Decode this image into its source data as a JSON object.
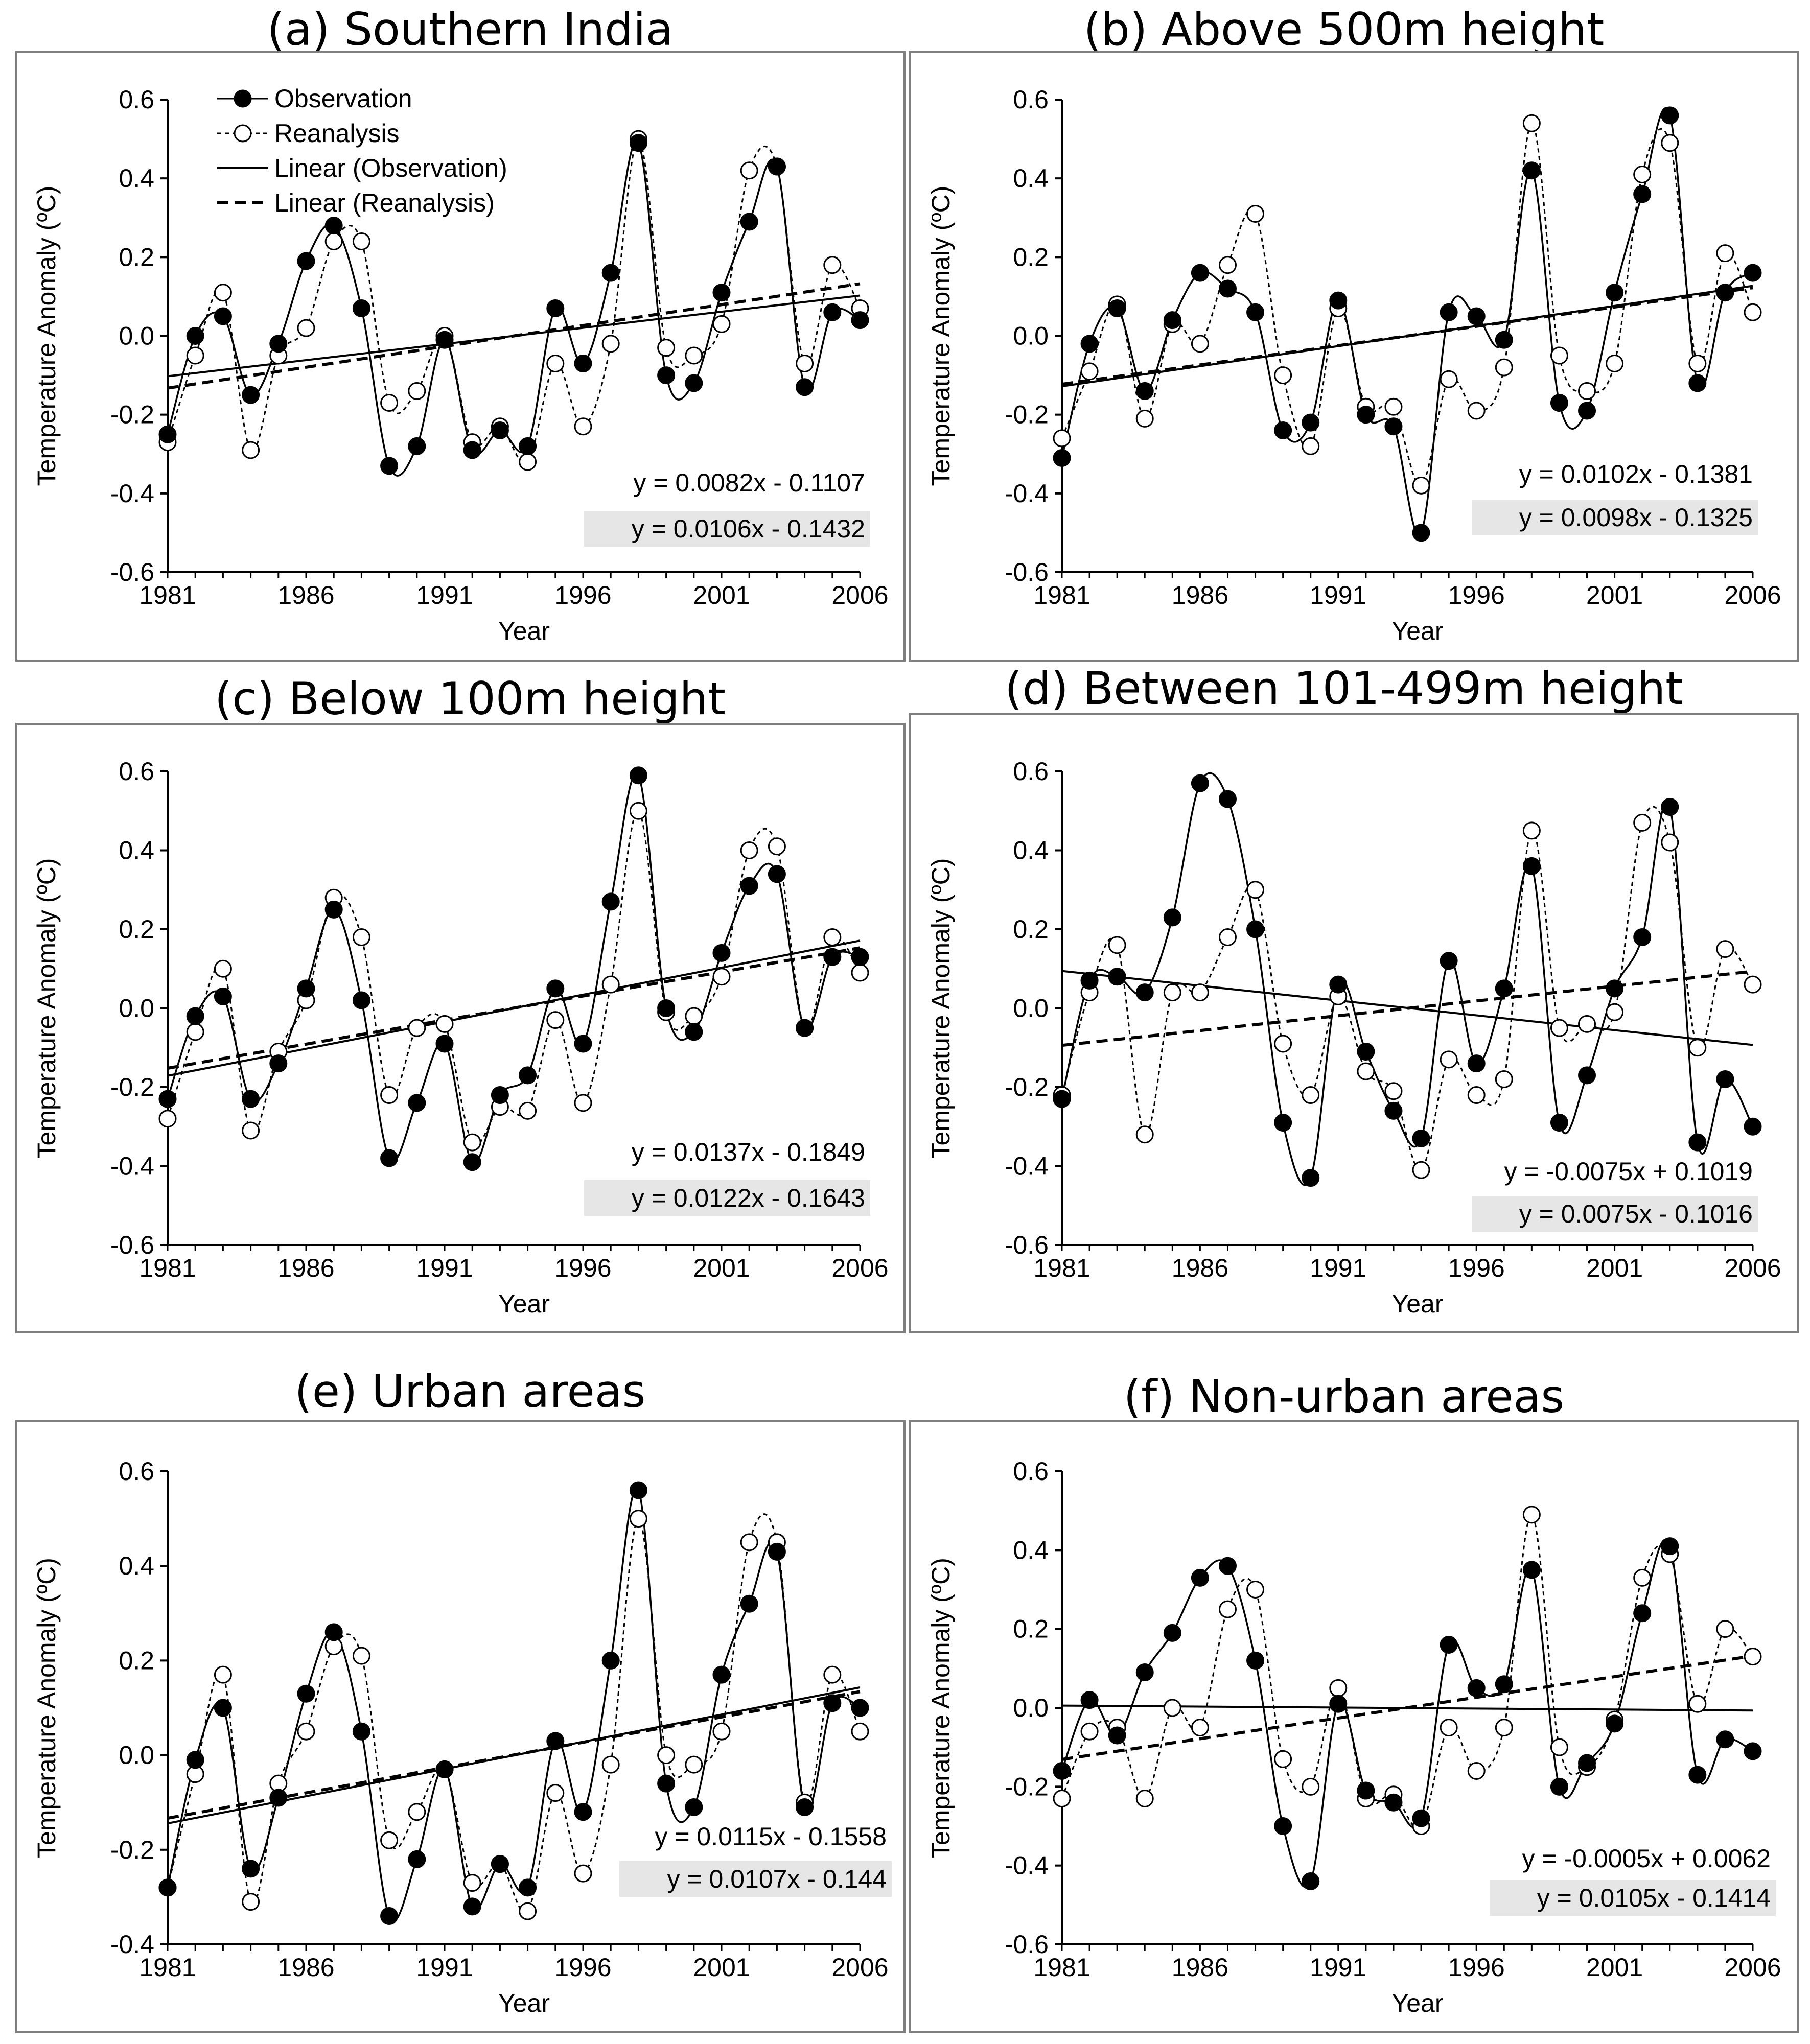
{
  "figure": {
    "ylabel": "Temperature Anomaly (ºC)",
    "xlabel": "Year",
    "x_ticks": [
      1981,
      1986,
      1991,
      1996,
      2001,
      2006
    ],
    "legend": [
      "Observation",
      "Reanalysis",
      "Linear (Observation)",
      "Linear (Reanalysis)"
    ]
  },
  "chart_data": [
    {
      "type": "line",
      "title": "(a) Southern India",
      "xlabel": "Year",
      "ylabel": "Temperature Anomaly (ºC)",
      "ylim": [
        -0.6,
        0.6
      ],
      "ytick_step": 0.2,
      "xlim": [
        1981,
        2006
      ],
      "x": [
        1981,
        1982,
        1983,
        1984,
        1985,
        1986,
        1987,
        1988,
        1989,
        1990,
        1991,
        1992,
        1993,
        1994,
        1995,
        1996,
        1997,
        1998,
        1999,
        2000,
        2001,
        2002,
        2003,
        2004,
        2005,
        2006
      ],
      "series": [
        {
          "name": "Observation",
          "values": [
            -0.25,
            0.0,
            0.05,
            -0.15,
            -0.02,
            0.19,
            0.28,
            0.07,
            -0.33,
            -0.28,
            -0.01,
            -0.29,
            -0.24,
            -0.28,
            0.07,
            -0.07,
            0.16,
            0.49,
            -0.1,
            -0.12,
            0.11,
            0.29,
            0.43,
            -0.13,
            0.06,
            0.04
          ]
        },
        {
          "name": "Reanalysis",
          "values": [
            -0.27,
            -0.05,
            0.11,
            -0.29,
            -0.05,
            0.02,
            0.24,
            0.24,
            -0.17,
            -0.14,
            0.0,
            -0.27,
            -0.23,
            -0.32,
            -0.07,
            -0.23,
            -0.02,
            0.5,
            -0.03,
            -0.05,
            0.03,
            0.42,
            0.43,
            -0.07,
            0.18,
            0.07
          ]
        }
      ],
      "trend_lines": [
        {
          "name": "Linear (Observation)",
          "slope": 0.0082,
          "intercept": -0.1107
        },
        {
          "name": "Linear (Reanalysis)",
          "slope": 0.0106,
          "intercept": -0.1432
        }
      ],
      "equations": [
        "y = 0.0082x - 0.1107",
        "y = 0.0106x - 0.1432"
      ],
      "legend": [
        "Observation",
        "Reanalysis",
        "Linear (Observation)",
        "Linear (Reanalysis)"
      ]
    },
    {
      "type": "line",
      "title": "(b) Above 500m height",
      "xlabel": "Year",
      "ylabel": "Temperature Anomaly (ºC)",
      "ylim": [
        -0.6,
        0.6
      ],
      "ytick_step": 0.2,
      "xlim": [
        1981,
        2006
      ],
      "x": [
        1981,
        1982,
        1983,
        1984,
        1985,
        1986,
        1987,
        1988,
        1989,
        1990,
        1991,
        1992,
        1993,
        1994,
        1995,
        1996,
        1997,
        1998,
        1999,
        2000,
        2001,
        2002,
        2003,
        2004,
        2005,
        2006
      ],
      "series": [
        {
          "name": "Observation",
          "values": [
            -0.31,
            -0.02,
            0.07,
            -0.14,
            0.04,
            0.16,
            0.12,
            0.06,
            -0.24,
            -0.22,
            0.09,
            -0.2,
            -0.23,
            -0.5,
            0.06,
            0.05,
            -0.01,
            0.42,
            -0.17,
            -0.19,
            0.11,
            0.36,
            0.56,
            -0.12,
            0.11,
            0.16
          ]
        },
        {
          "name": "Reanalysis",
          "values": [
            -0.26,
            -0.09,
            0.08,
            -0.21,
            0.03,
            -0.02,
            0.18,
            0.31,
            -0.1,
            -0.28,
            0.07,
            -0.18,
            -0.18,
            -0.38,
            -0.11,
            -0.19,
            -0.08,
            0.54,
            -0.05,
            -0.14,
            -0.07,
            0.41,
            0.49,
            -0.07,
            0.21,
            0.06
          ]
        }
      ],
      "trend_lines": [
        {
          "name": "Linear (Observation)",
          "slope": 0.0102,
          "intercept": -0.1381
        },
        {
          "name": "Linear (Reanalysis)",
          "slope": 0.0098,
          "intercept": -0.1325
        }
      ],
      "equations": [
        "y = 0.0102x - 0.1381",
        "y = 0.0098x - 0.1325"
      ]
    },
    {
      "type": "line",
      "title": "(c) Below 100m height",
      "xlabel": "Year",
      "ylabel": "Temperature Anomaly (ºC)",
      "ylim": [
        -0.6,
        0.6
      ],
      "ytick_step": 0.2,
      "xlim": [
        1981,
        2006
      ],
      "x": [
        1981,
        1982,
        1983,
        1984,
        1985,
        1986,
        1987,
        1988,
        1989,
        1990,
        1991,
        1992,
        1993,
        1994,
        1995,
        1996,
        1997,
        1998,
        1999,
        2000,
        2001,
        2002,
        2003,
        2004,
        2005,
        2006
      ],
      "series": [
        {
          "name": "Observation",
          "values": [
            -0.23,
            -0.02,
            0.03,
            -0.23,
            -0.14,
            0.05,
            0.25,
            0.02,
            -0.38,
            -0.24,
            -0.09,
            -0.39,
            -0.22,
            -0.17,
            0.05,
            -0.09,
            0.27,
            0.59,
            0.0,
            -0.06,
            0.14,
            0.31,
            0.34,
            -0.05,
            0.13,
            0.13
          ]
        },
        {
          "name": "Reanalysis",
          "values": [
            -0.28,
            -0.06,
            0.1,
            -0.31,
            -0.11,
            0.02,
            0.28,
            0.18,
            -0.22,
            -0.05,
            -0.04,
            -0.34,
            -0.25,
            -0.26,
            -0.03,
            -0.24,
            0.06,
            0.5,
            -0.01,
            -0.02,
            0.08,
            0.4,
            0.41,
            -0.05,
            0.18,
            0.09
          ]
        }
      ],
      "trend_lines": [
        {
          "name": "Linear (Observation)",
          "slope": 0.0137,
          "intercept": -0.1849
        },
        {
          "name": "Linear (Reanalysis)",
          "slope": 0.0122,
          "intercept": -0.1643
        }
      ],
      "equations": [
        "y = 0.0137x - 0.1849",
        "y = 0.0122x - 0.1643"
      ]
    },
    {
      "type": "line",
      "title": "(d) Between 101-499m height",
      "xlabel": "Year",
      "ylabel": "Temperature Anomaly (ºC)",
      "ylim": [
        -0.6,
        0.6
      ],
      "ytick_step": 0.2,
      "xlim": [
        1981,
        2006
      ],
      "x": [
        1981,
        1982,
        1983,
        1984,
        1985,
        1986,
        1987,
        1988,
        1989,
        1990,
        1991,
        1992,
        1993,
        1994,
        1995,
        1996,
        1997,
        1998,
        1999,
        2000,
        2001,
        2002,
        2003,
        2004,
        2005,
        2006
      ],
      "series": [
        {
          "name": "Observation",
          "values": [
            -0.23,
            0.07,
            0.08,
            0.04,
            0.23,
            0.57,
            0.53,
            0.2,
            -0.29,
            -0.43,
            0.06,
            -0.11,
            -0.26,
            -0.33,
            0.12,
            -0.14,
            0.05,
            0.36,
            -0.29,
            -0.17,
            0.05,
            0.18,
            0.51,
            -0.34,
            -0.18,
            -0.3
          ]
        },
        {
          "name": "Reanalysis",
          "values": [
            -0.22,
            0.04,
            0.16,
            -0.32,
            0.04,
            0.04,
            0.18,
            0.3,
            -0.09,
            -0.22,
            0.03,
            -0.16,
            -0.21,
            -0.41,
            -0.13,
            -0.22,
            -0.18,
            0.45,
            -0.05,
            -0.04,
            -0.01,
            0.47,
            0.42,
            -0.1,
            0.15,
            0.06
          ]
        }
      ],
      "trend_lines": [
        {
          "name": "Linear (Observation)",
          "slope": -0.0075,
          "intercept": 0.1019
        },
        {
          "name": "Linear (Reanalysis)",
          "slope": 0.0075,
          "intercept": -0.1016
        }
      ],
      "equations": [
        "y = -0.0075x + 0.1019",
        "y = 0.0075x - 0.1016"
      ]
    },
    {
      "type": "line",
      "title": "(e) Urban areas",
      "xlabel": "Year",
      "ylabel": "Temperature Anomaly (ºC)",
      "ylim": [
        -0.4,
        0.6
      ],
      "ytick_step": 0.2,
      "xlim": [
        1981,
        2006
      ],
      "x": [
        1981,
        1982,
        1983,
        1984,
        1985,
        1986,
        1987,
        1988,
        1989,
        1990,
        1991,
        1992,
        1993,
        1994,
        1995,
        1996,
        1997,
        1998,
        1999,
        2000,
        2001,
        2002,
        2003,
        2004,
        2005,
        2006
      ],
      "series": [
        {
          "name": "Observation",
          "values": [
            -0.28,
            -0.01,
            0.1,
            -0.24,
            -0.09,
            0.13,
            0.26,
            0.05,
            -0.34,
            -0.22,
            -0.03,
            -0.32,
            -0.23,
            -0.28,
            0.03,
            -0.12,
            0.2,
            0.56,
            -0.06,
            -0.11,
            0.17,
            0.32,
            0.43,
            -0.11,
            0.11,
            0.1
          ]
        },
        {
          "name": "Reanalysis",
          "values": [
            -0.28,
            -0.04,
            0.17,
            -0.31,
            -0.06,
            0.05,
            0.23,
            0.21,
            -0.18,
            -0.12,
            -0.03,
            -0.27,
            -0.23,
            -0.33,
            -0.08,
            -0.25,
            -0.02,
            0.5,
            0.0,
            -0.02,
            0.05,
            0.45,
            0.45,
            -0.1,
            0.17,
            0.05
          ]
        }
      ],
      "trend_lines": [
        {
          "name": "Linear (Observation)",
          "slope": 0.0115,
          "intercept": -0.1558
        },
        {
          "name": "Linear (Reanalysis)",
          "slope": 0.0107,
          "intercept": -0.144
        }
      ],
      "equations": [
        "y = 0.0115x - 0.1558",
        "y = 0.0107x - 0.144"
      ]
    },
    {
      "type": "line",
      "title": "(f) Non-urban areas",
      "xlabel": "Year",
      "ylabel": "Temperature Anomaly (ºC)",
      "ylim": [
        -0.6,
        0.6
      ],
      "ytick_step": 0.2,
      "xlim": [
        1981,
        2006
      ],
      "x": [
        1981,
        1982,
        1983,
        1984,
        1985,
        1986,
        1987,
        1988,
        1989,
        1990,
        1991,
        1992,
        1993,
        1994,
        1995,
        1996,
        1997,
        1998,
        1999,
        2000,
        2001,
        2002,
        2003,
        2004,
        2005,
        2006
      ],
      "series": [
        {
          "name": "Observation",
          "values": [
            -0.16,
            0.02,
            -0.07,
            0.09,
            0.19,
            0.33,
            0.36,
            0.12,
            -0.3,
            -0.44,
            0.01,
            -0.21,
            -0.24,
            -0.28,
            0.16,
            0.05,
            0.06,
            0.35,
            -0.2,
            -0.14,
            -0.04,
            0.24,
            0.41,
            -0.17,
            -0.08,
            -0.11
          ]
        },
        {
          "name": "Reanalysis",
          "values": [
            -0.23,
            -0.06,
            -0.05,
            -0.23,
            0.0,
            -0.05,
            0.25,
            0.3,
            -0.13,
            -0.2,
            0.05,
            -0.23,
            -0.22,
            -0.3,
            -0.05,
            -0.16,
            -0.05,
            0.49,
            -0.1,
            -0.15,
            -0.03,
            0.33,
            0.39,
            0.01,
            0.2,
            0.13
          ]
        }
      ],
      "trend_lines": [
        {
          "name": "Linear (Observation)",
          "slope": -0.0005,
          "intercept": 0.0062
        },
        {
          "name": "Linear (Reanalysis)",
          "slope": 0.0105,
          "intercept": -0.1414
        }
      ],
      "equations": [
        "y = -0.0005x + 0.0062",
        "y = 0.0105x - 0.1414"
      ]
    }
  ]
}
